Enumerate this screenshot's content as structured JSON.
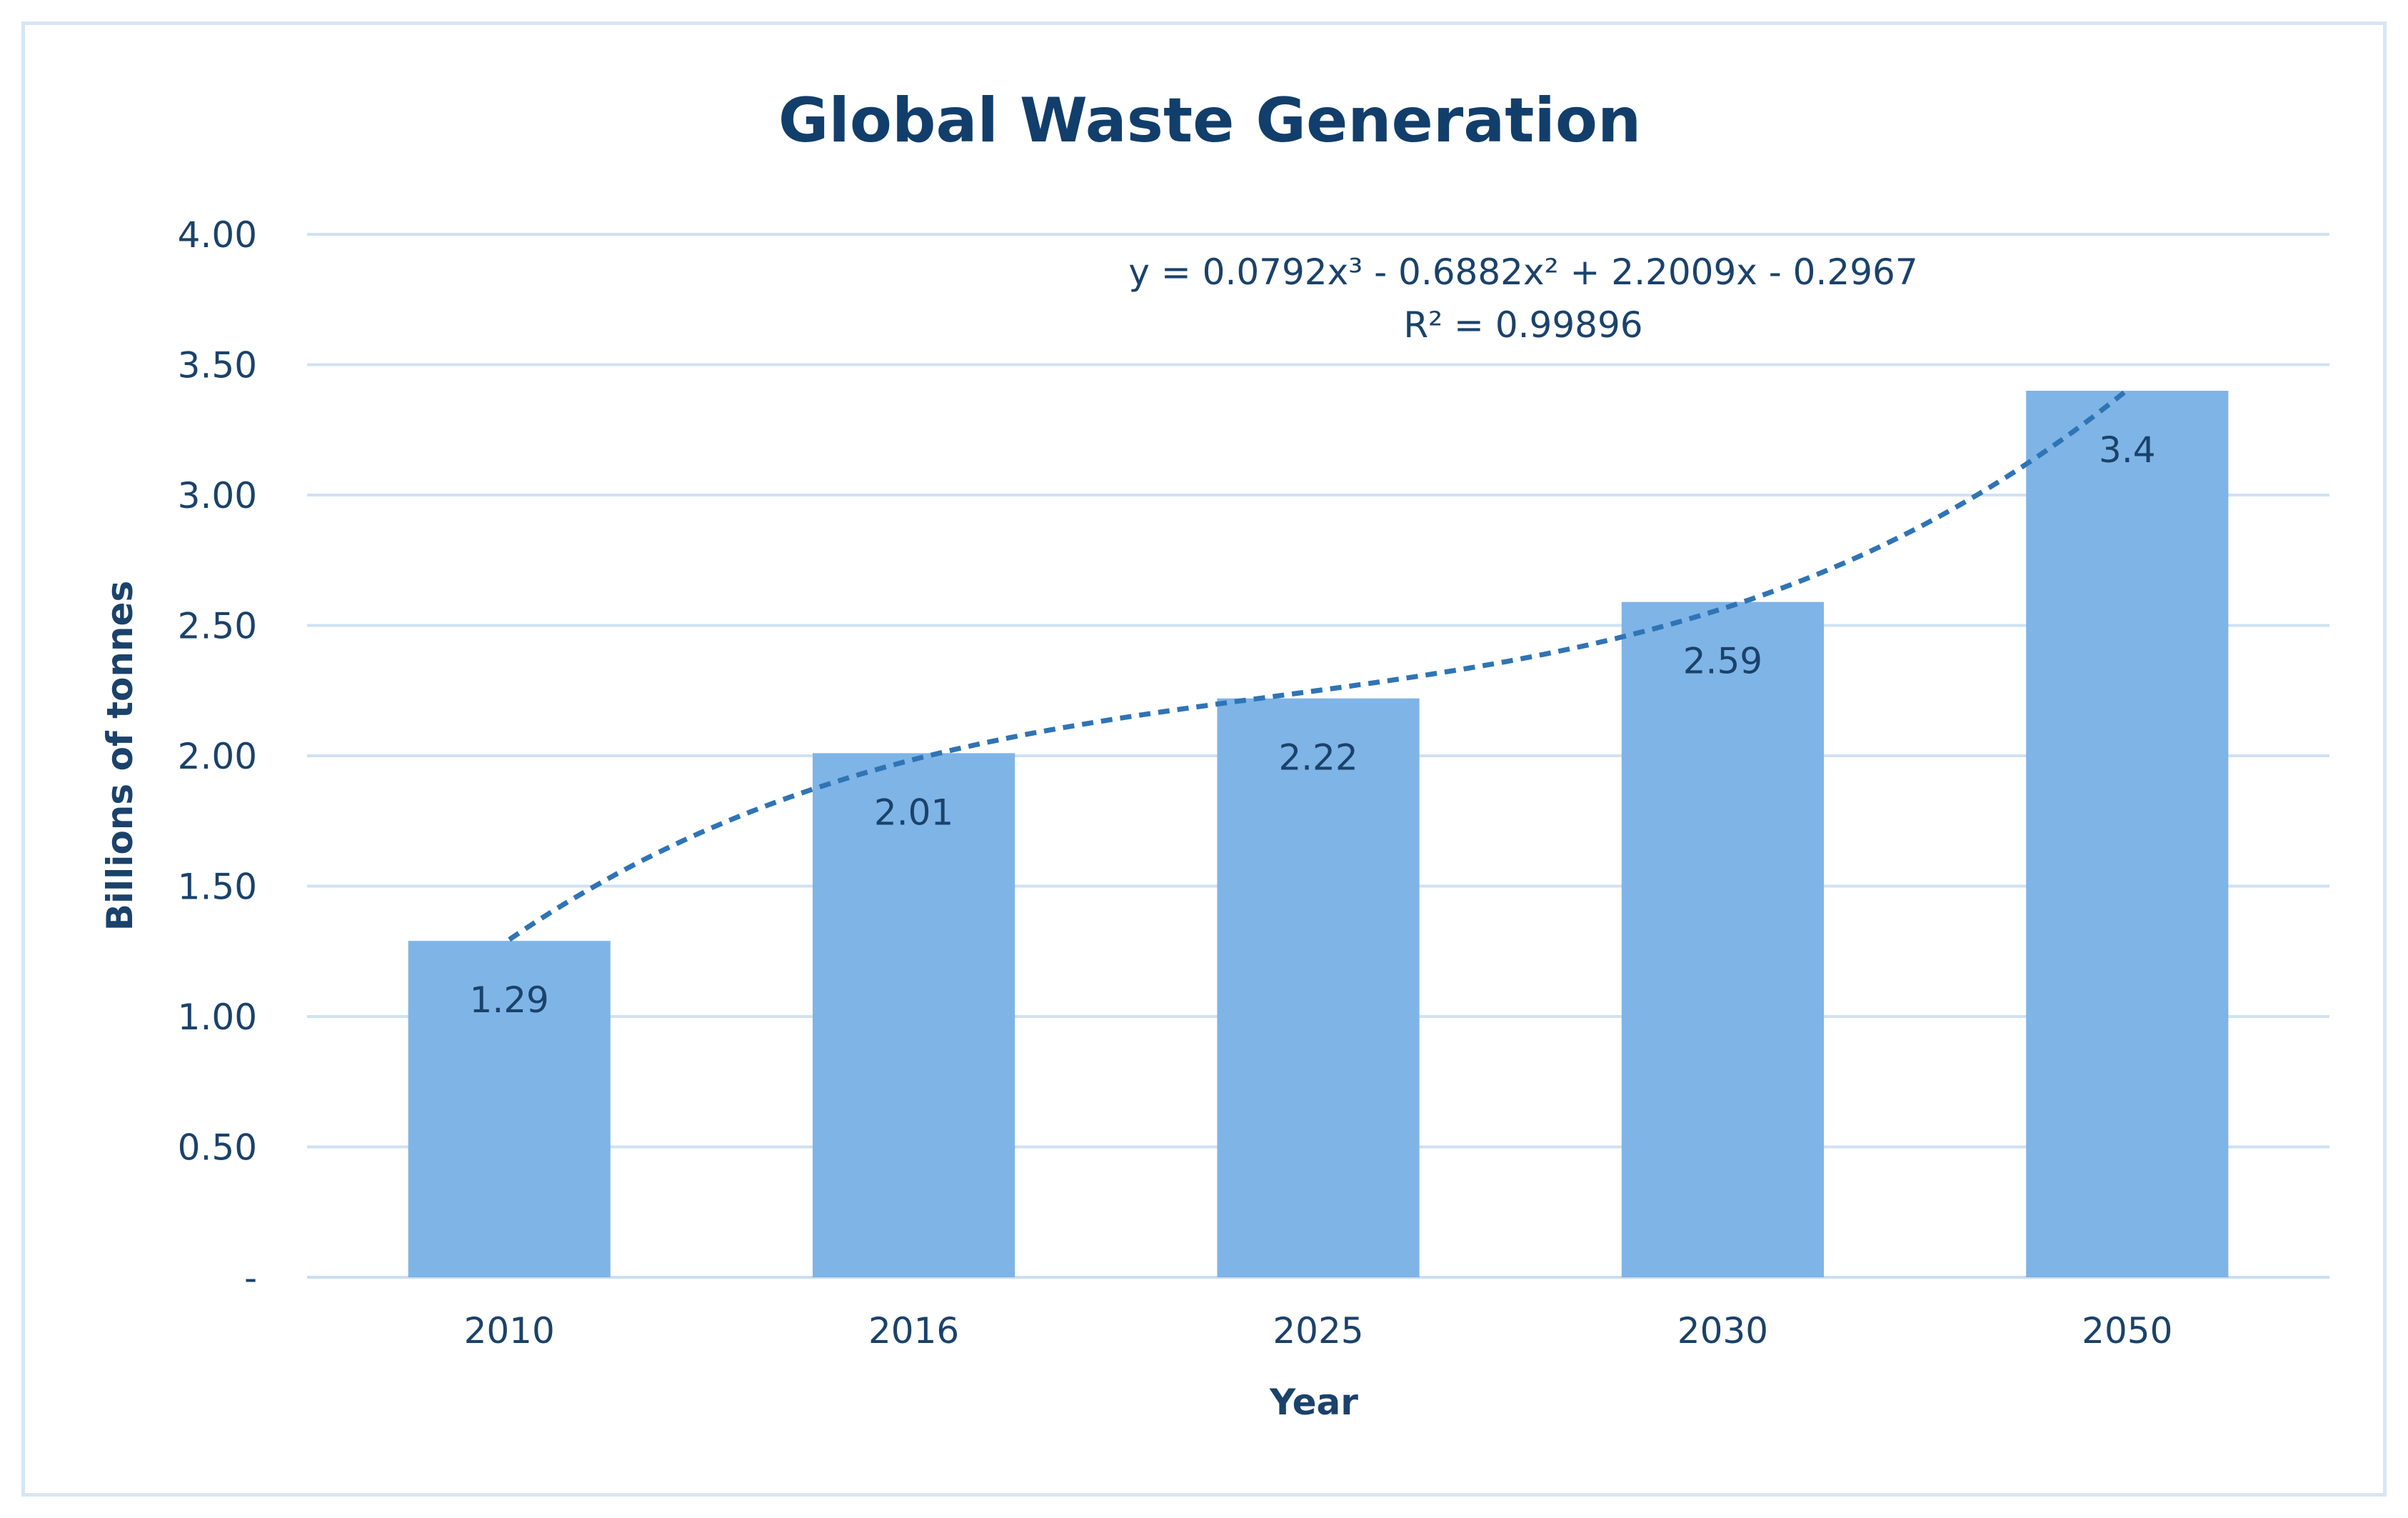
{
  "chart_data": {
    "type": "bar",
    "title": "Global Waste Generation",
    "xlabel": "Year",
    "ylabel": "Billions of tonnes",
    "categories": [
      "2010",
      "2016",
      "2025",
      "2030",
      "2050"
    ],
    "values": [
      1.29,
      2.01,
      2.22,
      2.59,
      3.4
    ],
    "data_labels": [
      "1.29",
      "2.01",
      "2.22",
      "2.59",
      "3.4"
    ],
    "ylim": [
      0,
      4
    ],
    "yticks": [
      0,
      0.5,
      1,
      1.5,
      2,
      2.5,
      3,
      3.5,
      4
    ],
    "ytick_labels": [
      "-",
      "0.50",
      "1.00",
      "1.50",
      "2.00",
      "2.50",
      "3.00",
      "3.50",
      "4.00"
    ],
    "grid": true,
    "legend": "none",
    "bar_color": "#7fb4e6",
    "trendline": {
      "type": "polynomial",
      "order": 3,
      "coefficients": [
        0.0792,
        -0.6882,
        2.2009,
        -0.2967
      ],
      "equation": "y = 0.0792x³ - 0.6882x² + 2.2009x - 0.2967",
      "r_squared": "R² = 0.99896",
      "color": "#2f74b5"
    }
  }
}
